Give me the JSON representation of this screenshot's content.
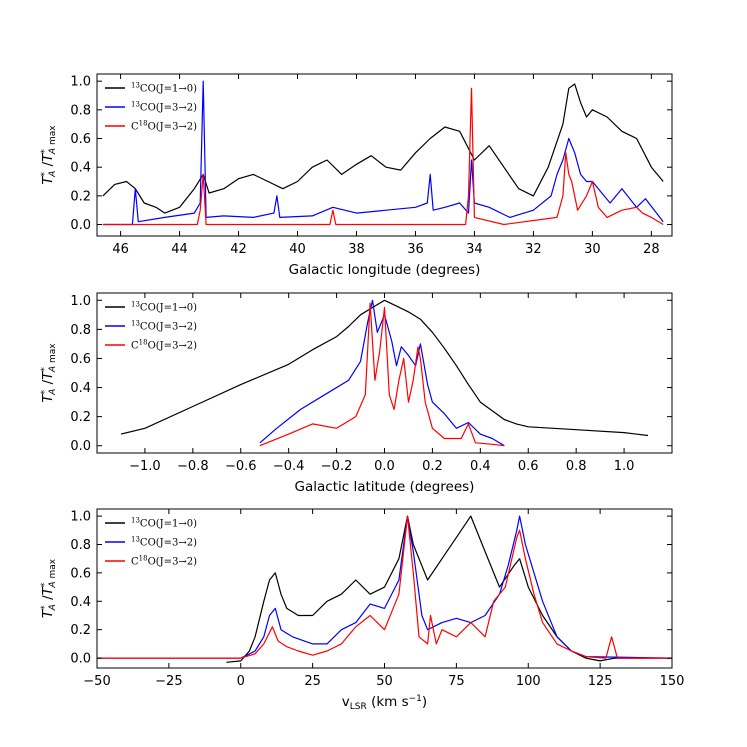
{
  "chart_data": [
    {
      "type": "line",
      "title": "",
      "xlabel": "Galactic longitude (degrees)",
      "ylabel": "T*_A / T*_A max",
      "xlim": [
        46.8,
        27.3
      ],
      "ylim": [
        -0.08,
        1.05
      ],
      "x_ticks": [
        "46",
        "44",
        "42",
        "40",
        "38",
        "36",
        "34",
        "32",
        "30",
        "28"
      ],
      "y_ticks": [
        "0.0",
        "0.2",
        "0.4",
        "0.6",
        "0.8",
        "1.0"
      ],
      "legend_position": "top-left",
      "series": [
        {
          "name": "13CO(J=1→0)",
          "color": "#000000",
          "x": [
            46.6,
            46.2,
            45.8,
            45.5,
            45.2,
            44.8,
            44.5,
            44.0,
            43.5,
            43.2,
            43.0,
            42.5,
            42.0,
            41.5,
            41.0,
            40.5,
            40.0,
            39.5,
            39.0,
            38.5,
            38.0,
            37.5,
            37.0,
            36.5,
            36.0,
            35.5,
            35.0,
            34.5,
            34.0,
            33.5,
            33.0,
            32.5,
            32.0,
            31.5,
            31.0,
            30.8,
            30.6,
            30.4,
            30.2,
            30.0,
            29.5,
            29.0,
            28.5,
            28.0,
            27.6
          ],
          "y": [
            0.2,
            0.28,
            0.3,
            0.25,
            0.15,
            0.12,
            0.08,
            0.12,
            0.25,
            0.35,
            0.22,
            0.25,
            0.32,
            0.35,
            0.3,
            0.25,
            0.3,
            0.4,
            0.45,
            0.35,
            0.42,
            0.48,
            0.4,
            0.38,
            0.5,
            0.6,
            0.68,
            0.65,
            0.45,
            0.55,
            0.4,
            0.25,
            0.2,
            0.4,
            0.7,
            0.95,
            0.98,
            0.85,
            0.75,
            0.8,
            0.75,
            0.65,
            0.6,
            0.4,
            0.3
          ]
        },
        {
          "name": "13CO(J=3→2)",
          "color": "#0000ff",
          "x": [
            46.6,
            45.6,
            45.5,
            45.4,
            44.5,
            43.5,
            43.3,
            43.2,
            43.1,
            42.5,
            41.5,
            40.8,
            40.7,
            40.6,
            39.5,
            38.8,
            38.0,
            37.0,
            36.0,
            35.6,
            35.5,
            35.4,
            35.0,
            34.5,
            34.2,
            34.1,
            34.0,
            33.5,
            32.8,
            32.0,
            31.4,
            31.2,
            31.0,
            30.8,
            30.6,
            30.4,
            30.2,
            30.0,
            29.8,
            29.4,
            29.0,
            28.5,
            28.2,
            27.6
          ],
          "y": [
            0.0,
            0.0,
            0.25,
            0.02,
            0.05,
            0.08,
            0.15,
            1.0,
            0.05,
            0.06,
            0.05,
            0.08,
            0.2,
            0.05,
            0.06,
            0.12,
            0.08,
            0.1,
            0.12,
            0.15,
            0.35,
            0.1,
            0.12,
            0.15,
            0.08,
            0.45,
            0.15,
            0.12,
            0.05,
            0.1,
            0.2,
            0.35,
            0.45,
            0.6,
            0.5,
            0.35,
            0.3,
            0.3,
            0.25,
            0.15,
            0.25,
            0.12,
            0.18,
            0.02
          ]
        },
        {
          "name": "C18O(J=3→2)",
          "color": "#ff0000",
          "x": [
            46.6,
            43.4,
            43.3,
            43.2,
            43.1,
            40.0,
            38.9,
            38.8,
            38.7,
            34.3,
            34.2,
            34.1,
            34.0,
            33.0,
            31.2,
            31.0,
            30.9,
            30.8,
            30.7,
            30.5,
            30.2,
            30.0,
            29.8,
            29.5,
            29.0,
            28.5,
            28.3,
            28.0,
            27.6
          ],
          "y": [
            0.0,
            0.0,
            0.1,
            0.35,
            0.0,
            0.0,
            0.0,
            0.1,
            0.0,
            0.0,
            0.2,
            0.95,
            0.05,
            0.0,
            0.05,
            0.2,
            0.5,
            0.35,
            0.3,
            0.1,
            0.2,
            0.3,
            0.12,
            0.05,
            0.1,
            0.12,
            0.08,
            0.05,
            0.0
          ]
        }
      ]
    },
    {
      "type": "line",
      "title": "",
      "xlabel": "Galactic latitude (degrees)",
      "ylabel": "T*_A / T*_A max",
      "xlim": [
        -1.2,
        1.2
      ],
      "ylim": [
        -0.05,
        1.05
      ],
      "x_ticks": [
        "−1.0",
        "−0.8",
        "−0.6",
        "−0.4",
        "−0.2",
        "0.0",
        "0.2",
        "0.4",
        "0.6",
        "0.8",
        "1.0"
      ],
      "y_ticks": [
        "0.0",
        "0.2",
        "0.4",
        "0.6",
        "0.8",
        "1.0"
      ],
      "legend_position": "top-left",
      "series": [
        {
          "name": "13CO(J=1→0)",
          "color": "#000000",
          "x": [
            -1.1,
            -1.0,
            -0.8,
            -0.6,
            -0.4,
            -0.3,
            -0.2,
            -0.15,
            -0.1,
            -0.05,
            0.0,
            0.05,
            0.1,
            0.15,
            0.2,
            0.25,
            0.3,
            0.35,
            0.4,
            0.5,
            0.55,
            0.6,
            0.8,
            1.0,
            1.1
          ],
          "y": [
            0.08,
            0.12,
            0.27,
            0.42,
            0.56,
            0.66,
            0.75,
            0.82,
            0.9,
            0.95,
            1.0,
            0.96,
            0.92,
            0.87,
            0.78,
            0.67,
            0.55,
            0.42,
            0.3,
            0.18,
            0.15,
            0.13,
            0.11,
            0.09,
            0.07
          ],
          "start_y": 0.08
        },
        {
          "name": "13CO(J=3→2)",
          "color": "#0000ff",
          "x": [
            -0.52,
            -0.45,
            -0.35,
            -0.25,
            -0.15,
            -0.1,
            -0.07,
            -0.05,
            -0.03,
            0.0,
            0.03,
            0.05,
            0.07,
            0.1,
            0.13,
            0.15,
            0.18,
            0.2,
            0.25,
            0.3,
            0.35,
            0.4,
            0.45,
            0.5
          ],
          "y": [
            0.02,
            0.12,
            0.25,
            0.35,
            0.45,
            0.58,
            0.85,
            1.0,
            0.78,
            0.9,
            0.72,
            0.55,
            0.68,
            0.62,
            0.55,
            0.7,
            0.42,
            0.3,
            0.22,
            0.12,
            0.16,
            0.08,
            0.05,
            0.0
          ]
        },
        {
          "name": "C18O(J=3→2)",
          "color": "#ff0000",
          "x": [
            -0.52,
            -0.4,
            -0.3,
            -0.2,
            -0.12,
            -0.08,
            -0.06,
            -0.04,
            -0.02,
            0.0,
            0.02,
            0.04,
            0.06,
            0.08,
            0.1,
            0.12,
            0.14,
            0.15,
            0.17,
            0.2,
            0.25,
            0.32,
            0.35,
            0.38,
            0.45,
            0.5
          ],
          "y": [
            0.0,
            0.08,
            0.15,
            0.12,
            0.2,
            0.35,
            0.98,
            0.45,
            0.65,
            0.95,
            0.35,
            0.25,
            0.45,
            0.6,
            0.3,
            0.45,
            0.68,
            0.6,
            0.3,
            0.12,
            0.05,
            0.05,
            0.15,
            0.02,
            0.01,
            0.0
          ]
        }
      ]
    },
    {
      "type": "line",
      "title": "",
      "xlabel": "vLSR (km s−1)",
      "ylabel": "T*_A / T*_A max",
      "xlim": [
        -50,
        150
      ],
      "ylim": [
        -0.07,
        1.05
      ],
      "x_ticks": [
        "−50",
        "−25",
        "0",
        "25",
        "50",
        "75",
        "100",
        "125",
        "150"
      ],
      "y_ticks": [
        "0.0",
        "0.2",
        "0.4",
        "0.6",
        "0.8",
        "1.0"
      ],
      "legend_position": "top-left",
      "series": [
        {
          "name": "13CO(J=1→0)",
          "color": "#000000",
          "x": [
            -5,
            0,
            3,
            5,
            8,
            10,
            12,
            14,
            16,
            20,
            25,
            30,
            35,
            40,
            45,
            50,
            55,
            58,
            60,
            63,
            65,
            70,
            75,
            80,
            85,
            90,
            95,
            97,
            100,
            105,
            110,
            115,
            120,
            125,
            130,
            150
          ],
          "y": [
            -0.03,
            -0.02,
            0.05,
            0.15,
            0.4,
            0.55,
            0.6,
            0.45,
            0.35,
            0.3,
            0.3,
            0.4,
            0.45,
            0.55,
            0.45,
            0.5,
            0.7,
            1.0,
            0.8,
            0.65,
            0.55,
            0.7,
            0.85,
            1.0,
            0.75,
            0.5,
            0.65,
            0.7,
            0.5,
            0.3,
            0.15,
            0.05,
            0.0,
            -0.02,
            0.0,
            0.0
          ]
        },
        {
          "name": "13CO(J=3→2)",
          "color": "#0000ff",
          "x": [
            -50,
            0,
            5,
            8,
            10,
            12,
            14,
            18,
            25,
            30,
            35,
            40,
            45,
            50,
            55,
            58,
            60,
            63,
            65,
            70,
            75,
            80,
            85,
            90,
            93,
            96,
            97,
            99,
            102,
            105,
            110,
            115,
            120,
            150
          ],
          "y": [
            0.0,
            0.0,
            0.05,
            0.15,
            0.3,
            0.35,
            0.2,
            0.15,
            0.1,
            0.1,
            0.2,
            0.25,
            0.38,
            0.35,
            0.55,
            1.0,
            0.75,
            0.3,
            0.2,
            0.25,
            0.28,
            0.25,
            0.3,
            0.45,
            0.65,
            0.9,
            1.0,
            0.8,
            0.6,
            0.4,
            0.15,
            0.05,
            0.01,
            0.0
          ]
        },
        {
          "name": "C18O(J=3→2)",
          "color": "#ff0000",
          "x": [
            -50,
            0,
            5,
            8,
            11,
            13,
            16,
            20,
            25,
            30,
            35,
            40,
            45,
            50,
            55,
            58,
            60,
            62,
            65,
            66,
            68,
            70,
            75,
            80,
            85,
            88,
            92,
            96,
            97,
            99,
            102,
            105,
            110,
            115,
            120,
            127,
            129,
            131,
            135,
            150
          ],
          "y": [
            0.0,
            0.0,
            0.03,
            0.1,
            0.22,
            0.12,
            0.08,
            0.05,
            0.02,
            0.05,
            0.1,
            0.22,
            0.3,
            0.2,
            0.45,
            1.0,
            0.6,
            0.15,
            0.1,
            0.3,
            0.1,
            0.2,
            0.15,
            0.25,
            0.15,
            0.4,
            0.5,
            0.85,
            0.9,
            0.7,
            0.45,
            0.25,
            0.1,
            0.05,
            0.01,
            0.0,
            0.15,
            0.0,
            0.0,
            0.0
          ]
        }
      ]
    }
  ]
}
